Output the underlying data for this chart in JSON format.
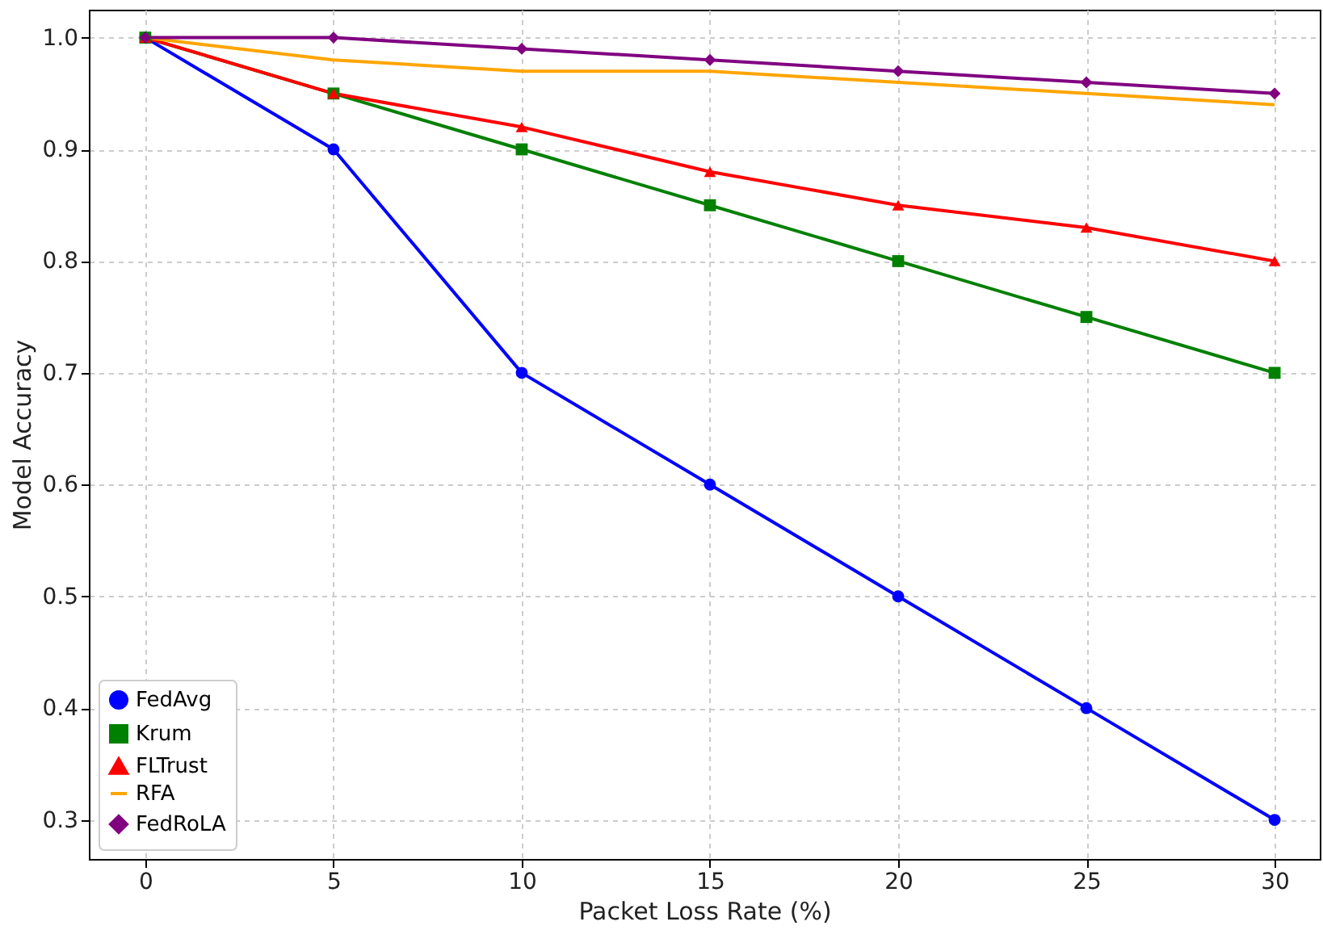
{
  "chart_data": {
    "type": "line",
    "xlabel": "Packet Loss Rate (%)",
    "ylabel": "Model Accuracy",
    "x": [
      0,
      5,
      10,
      15,
      20,
      25,
      30
    ],
    "xlim": [
      -1.5,
      31.2
    ],
    "xticks": [
      0,
      5,
      10,
      15,
      20,
      25,
      30
    ],
    "ylim": [
      0.265,
      1.025
    ],
    "yticks": [
      0.3,
      0.4,
      0.5,
      0.6,
      0.7,
      0.8,
      0.9,
      {
        "value": 1,
        "label": "1.0"
      }
    ],
    "grid": true,
    "legend": "bottom left",
    "line_style": "solid",
    "series": [
      {
        "name": "FedAvg",
        "color": "#0000ff",
        "marker": "circle",
        "values": [
          1.0,
          0.9,
          0.7,
          0.6,
          0.5,
          0.4,
          0.3
        ]
      },
      {
        "name": "Krum",
        "color": "#008000",
        "marker": "square",
        "values": [
          1.0,
          0.95,
          0.9,
          0.85,
          0.8,
          0.75,
          0.7
        ]
      },
      {
        "name": "FLTrust",
        "color": "#ff0000",
        "marker": "triangle",
        "values": [
          1.0,
          0.95,
          0.92,
          0.88,
          0.85,
          0.83,
          0.8
        ]
      },
      {
        "name": "RFA",
        "color": "#ffa500",
        "marker": "none",
        "values": [
          1.0,
          0.98,
          0.97,
          0.97,
          0.96,
          0.95,
          0.94
        ]
      },
      {
        "name": "FedRoLA",
        "color": "#800080",
        "marker": "diamond",
        "values": [
          1.0,
          1.0,
          0.99,
          0.98,
          0.97,
          0.96,
          0.95
        ]
      }
    ]
  }
}
